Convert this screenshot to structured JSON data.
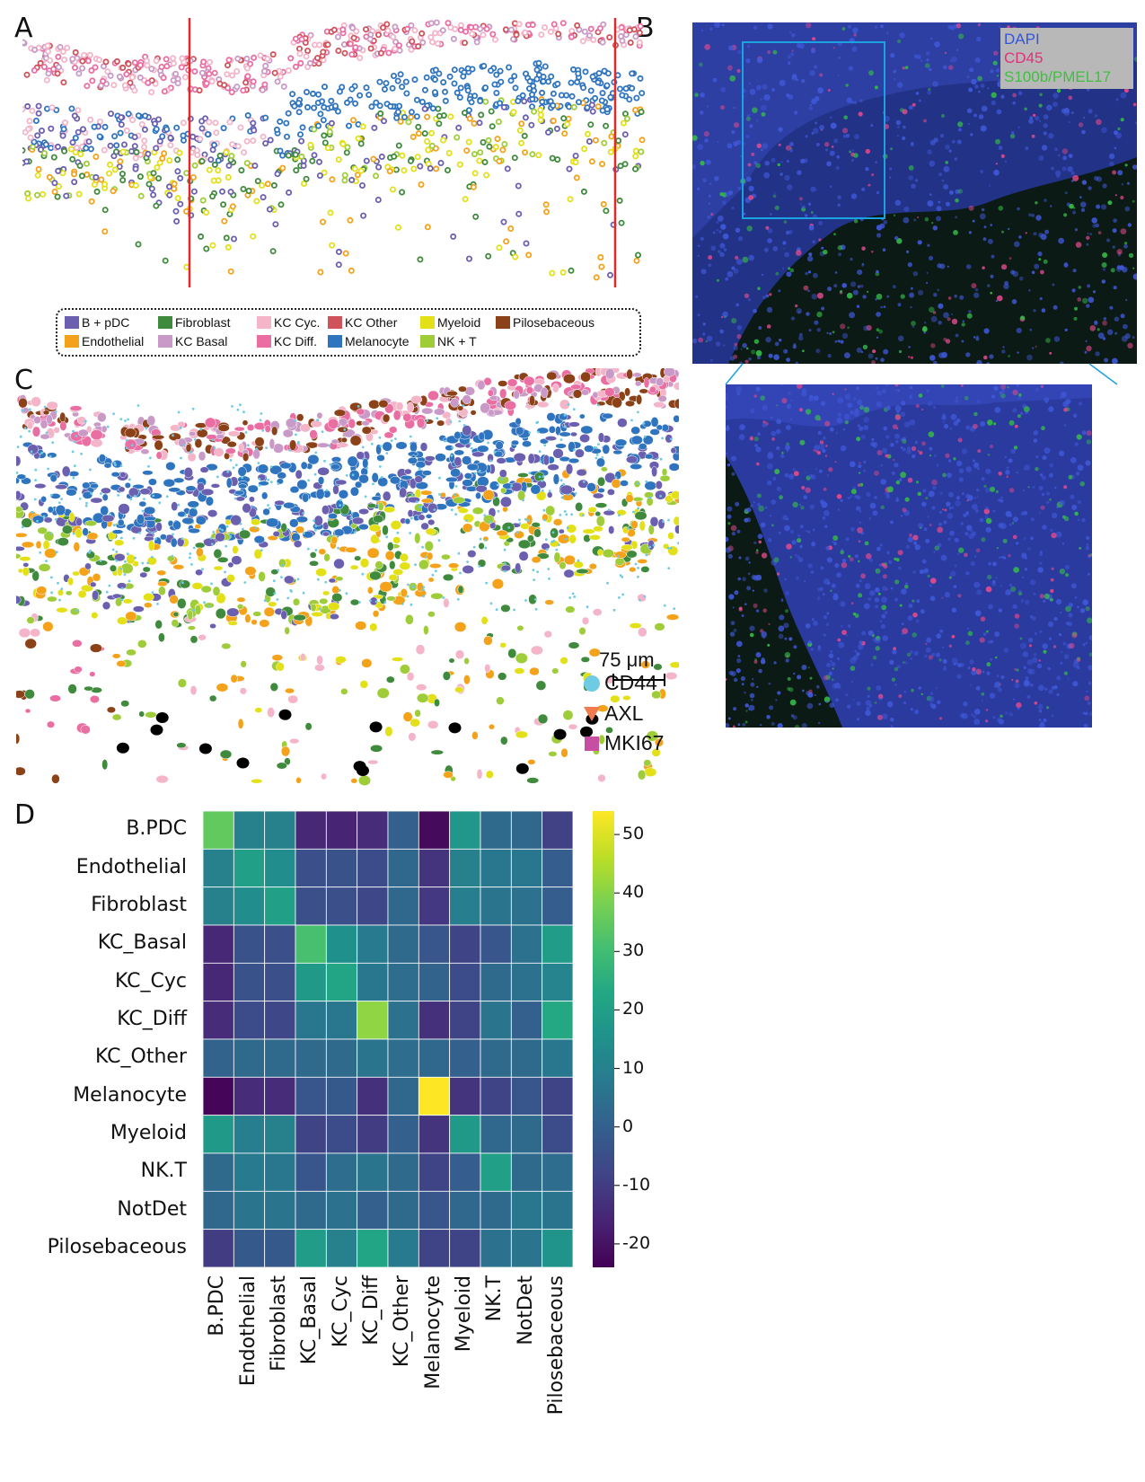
{
  "panels": {
    "a": "A",
    "b": "B",
    "c": "C",
    "d": "D"
  },
  "cell_types": [
    {
      "label": "B + pDC",
      "color": "#6b5fb0"
    },
    {
      "label": "Endothelial",
      "color": "#f5a21b"
    },
    {
      "label": "Fibroblast",
      "color": "#3f8a3c"
    },
    {
      "label": "KC Basal",
      "color": "#c99ac8"
    },
    {
      "label": "KC Cyc.",
      "color": "#f4b5c8"
    },
    {
      "label": "KC Diff.",
      "color": "#ea6ea2"
    },
    {
      "label": "KC Other",
      "color": "#d0525a"
    },
    {
      "label": "Melanocyte",
      "color": "#2f74bf"
    },
    {
      "label": "Myeloid",
      "color": "#e3e018"
    },
    {
      "label": "NK + T",
      "color": "#9fcd3a"
    },
    {
      "label": "Pilosebaceous",
      "color": "#8b4219"
    }
  ],
  "channels": [
    {
      "label": "DAPI",
      "color": "#3355dd"
    },
    {
      "label": "CD45",
      "color": "#e0307a"
    },
    {
      "label": "S100b/PMEL17",
      "color": "#3fc040"
    }
  ],
  "scale_bar": "75 μm",
  "markers": [
    {
      "label": "CD44",
      "color": "#6ecbe3",
      "icon": "circle-icon"
    },
    {
      "label": "AXL",
      "color": "#f07b4f",
      "icon": "triangle-down-icon"
    },
    {
      "label": "MKI67",
      "color": "#c64fa3",
      "icon": "square-icon"
    }
  ],
  "chart_data": {
    "type": "heatmap",
    "rows": [
      "B.PDC",
      "Endothelial",
      "Fibroblast",
      "KC_Basal",
      "KC_Cyc",
      "KC_Diff",
      "KC_Other",
      "Melanocyte",
      "Myeloid",
      "NK.T",
      "NotDet",
      "Pilosebaceous"
    ],
    "columns": [
      "B.PDC",
      "Endothelial",
      "Fibroblast",
      "KC_Basal",
      "KC_Cyc",
      "KC_Diff",
      "KC_Other",
      "Melanocyte",
      "Myeloid",
      "NK.T",
      "NotDet",
      "Pilosebaceous"
    ],
    "values": [
      [
        35,
        10,
        10,
        -15,
        -16,
        -14,
        0,
        -22,
        17,
        3,
        2,
        -9
      ],
      [
        10,
        20,
        14,
        -5,
        -4,
        -6,
        2,
        -12,
        10,
        7,
        7,
        -1
      ],
      [
        10,
        14,
        20,
        -5,
        -5,
        -7,
        2,
        -11,
        9,
        6,
        5,
        -1
      ],
      [
        -15,
        -4,
        -5,
        31,
        15,
        8,
        3,
        -3,
        -8,
        -3,
        5,
        19
      ],
      [
        -15,
        -4,
        -5,
        18,
        22,
        7,
        4,
        1,
        -6,
        3,
        5,
        11
      ],
      [
        -14,
        -6,
        -7,
        7,
        7,
        41,
        5,
        -13,
        -8,
        6,
        0,
        23
      ],
      [
        1,
        3,
        3,
        3,
        3,
        6,
        4,
        2,
        0,
        3,
        3,
        7
      ],
      [
        -23,
        -14,
        -14,
        -3,
        -2,
        -13,
        2,
        54,
        -12,
        -8,
        -3,
        -8
      ],
      [
        18,
        9,
        10,
        -8,
        -6,
        -10,
        0,
        -12,
        18,
        2,
        3,
        -6
      ],
      [
        3,
        8,
        7,
        -3,
        4,
        6,
        3,
        -8,
        -1,
        20,
        3,
        4
      ],
      [
        2,
        6,
        6,
        3,
        5,
        0,
        3,
        -3,
        2,
        3,
        7,
        6
      ],
      [
        -10,
        -2,
        -2,
        19,
        10,
        22,
        8,
        -8,
        -8,
        5,
        6,
        16
      ]
    ],
    "colorbar": {
      "min": -24,
      "max": 54,
      "ticks": [
        50,
        40,
        30,
        20,
        10,
        0,
        -10,
        -20
      ]
    },
    "colormap": "viridis"
  }
}
